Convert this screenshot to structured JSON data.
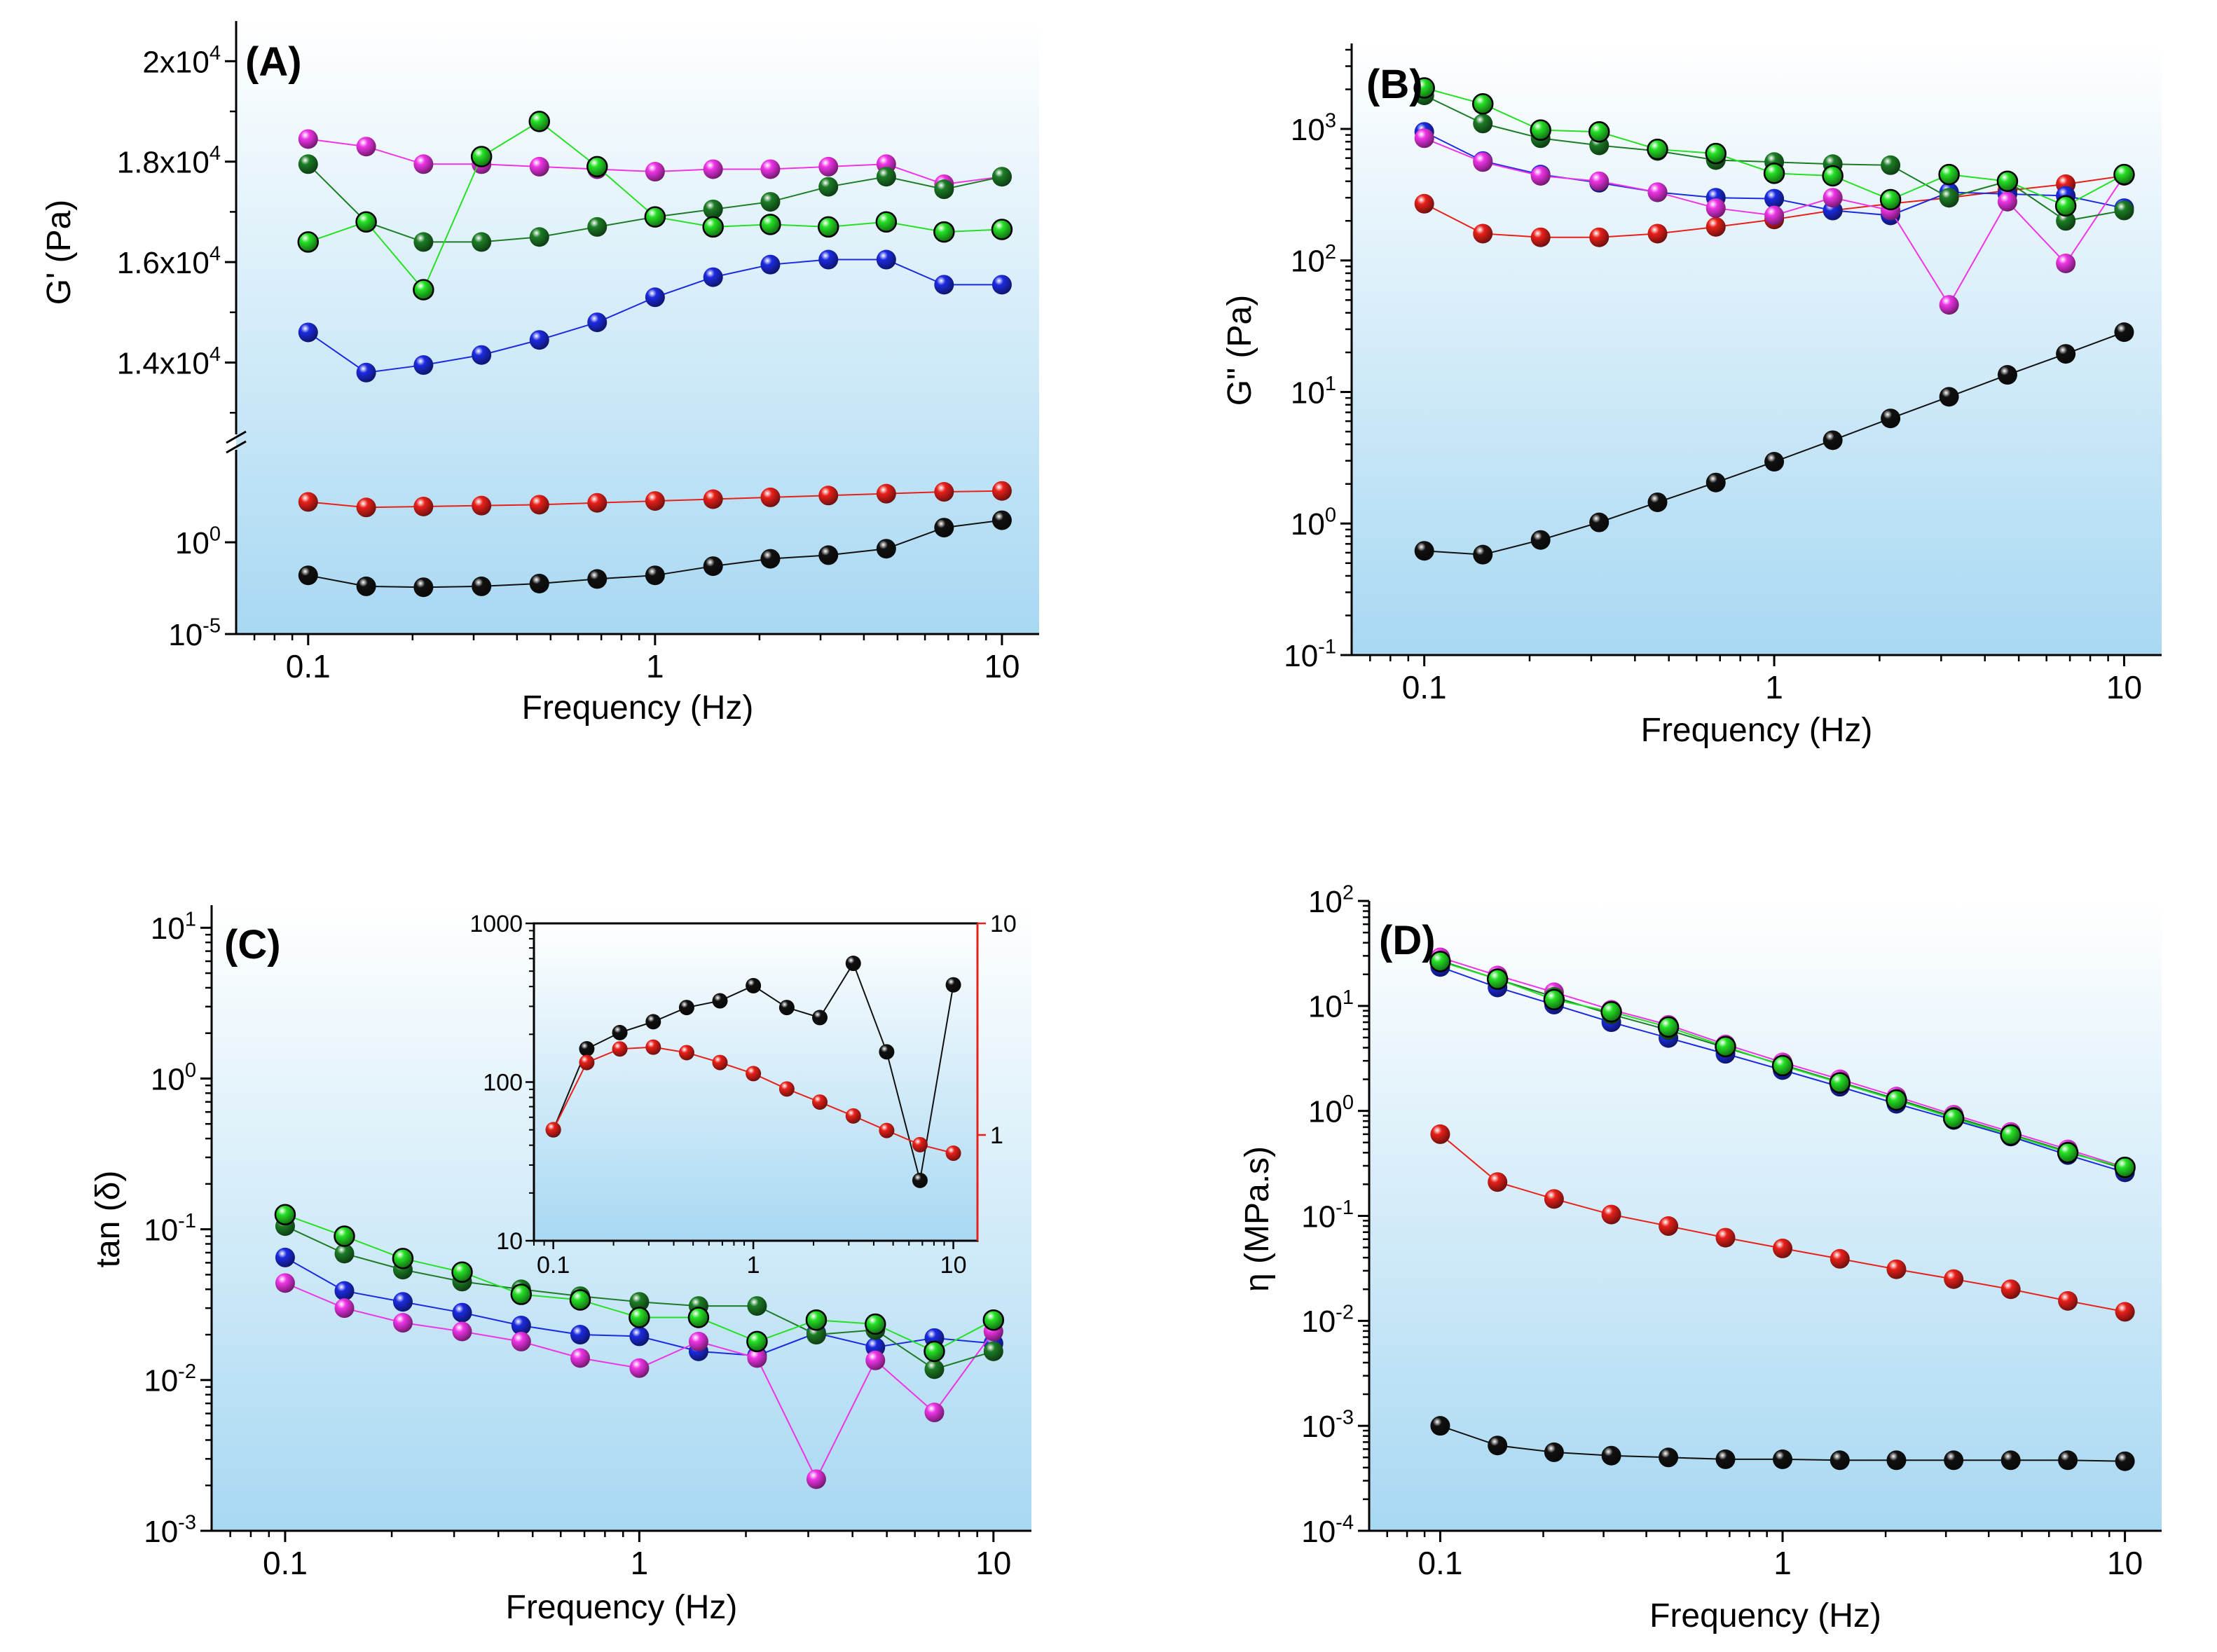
{
  "colors": {
    "black": "#111111",
    "red": "#e8201a",
    "blue": "#1c2be0",
    "magenta": "#ee34e6",
    "dgreen": "#1c7d26",
    "lgreen": "#25e025",
    "bg_top": "#ffffff",
    "bg_bottom": "#a8d8f2"
  },
  "chart_data": [
    {
      "id": "A",
      "title": "(A)",
      "type": "line",
      "xlabel": "Frequency (Hz)",
      "ylabel": "G' (Pa)",
      "xscale": "log",
      "xlim": [
        0.062,
        12.8
      ],
      "xticks": [
        0.1,
        1,
        10
      ],
      "xtick_labels": [
        "0.1",
        "1",
        "10"
      ],
      "yaxis_break": true,
      "ylim_upper": [
        12500,
        20800
      ],
      "yticks_upper": [
        {
          "v": 14000,
          "m": "1.4x10",
          "e": "4"
        },
        {
          "v": 16000,
          "m": "1.6x10",
          "e": "4"
        },
        {
          "v": 18000,
          "m": "1.8x10",
          "e": "4"
        },
        {
          "v": 20000,
          "m": "2x10",
          "e": "4"
        }
      ],
      "ylim_lower_log": [
        -5,
        5.5
      ],
      "yticks_lower": [
        {
          "v": 0,
          "m": "10",
          "e": "0"
        },
        {
          "v": -5,
          "m": "10",
          "e": "-5"
        }
      ],
      "x": [
        0.1,
        0.147,
        0.215,
        0.316,
        0.464,
        0.681,
        1.0,
        1.47,
        2.15,
        3.16,
        4.64,
        6.81,
        10.0
      ],
      "series": [
        {
          "name": "black",
          "segment": "lower",
          "values_log10": [
            -1.8,
            -2.4,
            -2.45,
            -2.4,
            -2.25,
            -2.0,
            -1.8,
            -1.3,
            -0.9,
            -0.7,
            -0.35,
            0.8,
            1.2
          ]
        },
        {
          "name": "red",
          "segment": "lower",
          "values_log10": [
            2.2,
            1.9,
            1.95,
            2.0,
            2.05,
            2.15,
            2.25,
            2.35,
            2.45,
            2.55,
            2.65,
            2.75,
            2.8
          ]
        },
        {
          "name": "blue",
          "segment": "upper",
          "values": [
            14600,
            13800,
            13950,
            14150,
            14450,
            14800,
            15300,
            15700,
            15950,
            16050,
            16050,
            15550,
            15550
          ]
        },
        {
          "name": "magenta",
          "segment": "upper",
          "values": [
            18450,
            18300,
            17950,
            17950,
            17900,
            17850,
            17800,
            17850,
            17850,
            17900,
            17950,
            17550,
            17700
          ]
        },
        {
          "name": "dgreen",
          "segment": "upper",
          "values": [
            17950,
            16800,
            16400,
            16400,
            16500,
            16700,
            16900,
            17050,
            17200,
            17500,
            17700,
            17450,
            17700
          ]
        },
        {
          "name": "lgreen",
          "segment": "upper",
          "values": [
            16400,
            16800,
            15450,
            18100,
            18800,
            17900,
            16900,
            16700,
            16750,
            16700,
            16800,
            16600,
            16650
          ]
        }
      ]
    },
    {
      "id": "B",
      "title": "(B)",
      "type": "line",
      "xlabel": "Frequency (Hz)",
      "ylabel": "G\" (Pa)",
      "xscale": "log",
      "xlim": [
        0.062,
        12.8
      ],
      "yscale": "log",
      "ylim_log": [
        -1,
        3.65
      ],
      "xticks": [
        0.1,
        1,
        10
      ],
      "xtick_labels": [
        "0.1",
        "1",
        "10"
      ],
      "yticks": [
        {
          "v": -1,
          "m": "10",
          "e": "-1"
        },
        {
          "v": 0,
          "m": "10",
          "e": "0"
        },
        {
          "v": 1,
          "m": "10",
          "e": "1"
        },
        {
          "v": 2,
          "m": "10",
          "e": "2"
        },
        {
          "v": 3,
          "m": "10",
          "e": "3"
        }
      ],
      "x": [
        0.1,
        0.147,
        0.215,
        0.316,
        0.464,
        0.681,
        1.0,
        1.47,
        2.15,
        3.16,
        4.64,
        6.81,
        10.0
      ],
      "series": [
        {
          "name": "black",
          "values": [
            0.62,
            0.58,
            0.75,
            1.02,
            1.45,
            2.05,
            2.95,
            4.3,
            6.3,
            9.2,
            13.5,
            19.5,
            28.5
          ]
        },
        {
          "name": "red",
          "values": [
            270,
            160,
            150,
            150,
            160,
            180,
            205,
            240,
            270,
            300,
            340,
            380,
            440
          ]
        },
        {
          "name": "blue",
          "values": [
            950,
            570,
            450,
            390,
            330,
            300,
            295,
            240,
            220,
            330,
            320,
            310,
            250
          ]
        },
        {
          "name": "magenta",
          "values": [
            850,
            560,
            440,
            400,
            330,
            250,
            220,
            300,
            240,
            46,
            280,
            95,
            440
          ]
        },
        {
          "name": "dgreen",
          "values": [
            1800,
            1100,
            850,
            750,
            680,
            580,
            560,
            540,
            530,
            300,
            400,
            200,
            240
          ]
        },
        {
          "name": "lgreen",
          "values": [
            2050,
            1550,
            980,
            950,
            700,
            650,
            460,
            440,
            290,
            450,
            400,
            260,
            450
          ]
        }
      ]
    },
    {
      "id": "C",
      "title": "(C)",
      "type": "line",
      "xlabel": "Frequency (Hz)",
      "ylabel": "tan (δ)",
      "xscale": "log",
      "xlim": [
        0.062,
        12.8
      ],
      "yscale": "log",
      "ylim_log": [
        -3,
        1.15
      ],
      "xticks": [
        0.1,
        1,
        10
      ],
      "xtick_labels": [
        "0.1",
        "1",
        "10"
      ],
      "yticks": [
        {
          "v": -3,
          "m": "10",
          "e": "-3"
        },
        {
          "v": -2,
          "m": "10",
          "e": "-2"
        },
        {
          "v": -1,
          "m": "10",
          "e": "-1"
        },
        {
          "v": 0,
          "m": "10",
          "e": "0"
        },
        {
          "v": 1,
          "m": "10",
          "e": "1"
        }
      ],
      "x": [
        0.1,
        0.147,
        0.215,
        0.316,
        0.464,
        0.681,
        1.0,
        1.47,
        2.15,
        3.16,
        4.64,
        6.81,
        10.0
      ],
      "series": [
        {
          "name": "blue",
          "values": [
            0.065,
            0.039,
            0.033,
            0.028,
            0.023,
            0.02,
            0.0195,
            0.0155,
            0.0145,
            0.0205,
            0.0165,
            0.019,
            0.0175
          ]
        },
        {
          "name": "magenta",
          "values": [
            0.044,
            0.03,
            0.024,
            0.021,
            0.018,
            0.014,
            0.012,
            0.018,
            0.014,
            0.0022,
            0.0135,
            0.0061,
            0.021
          ]
        },
        {
          "name": "dgreen",
          "values": [
            0.105,
            0.069,
            0.054,
            0.045,
            0.04,
            0.036,
            0.033,
            0.031,
            0.031,
            0.02,
            0.0215,
            0.0118,
            0.0155
          ]
        },
        {
          "name": "lgreen",
          "values": [
            0.125,
            0.09,
            0.064,
            0.052,
            0.037,
            0.034,
            0.026,
            0.026,
            0.018,
            0.025,
            0.0235,
            0.0155,
            0.025
          ]
        }
      ],
      "inset": {
        "xscale": "log",
        "xlim": [
          0.08,
          13.2
        ],
        "xticks": [
          0.1,
          1,
          10
        ],
        "xtick_labels": [
          "0.1",
          "1",
          "10"
        ],
        "left_ylim_log": [
          1,
          3
        ],
        "left_ticks": [
          {
            "v": 1,
            "label": "10"
          },
          {
            "v": 2,
            "label": "100"
          },
          {
            "v": 3,
            "label": "1000"
          }
        ],
        "right_ylim_log": [
          -0.5,
          1
        ],
        "right_ticks": [
          {
            "v": 0,
            "label": "1"
          },
          {
            "v": 1,
            "label": "10"
          }
        ],
        "x": [
          0.1,
          0.147,
          0.215,
          0.316,
          0.464,
          0.681,
          1.0,
          1.47,
          2.15,
          3.16,
          4.64,
          6.81,
          10.0
        ],
        "series": [
          {
            "name": "black",
            "axis": "left",
            "values": [
              50,
              162,
              205,
              240,
              295,
              325,
              405,
              295,
              255,
              560,
              155,
              24,
              410
            ]
          },
          {
            "name": "red",
            "axis": "right",
            "values": [
              1.06,
              2.2,
              2.55,
              2.6,
              2.45,
              2.2,
              1.95,
              1.65,
              1.43,
              1.23,
              1.05,
              0.9,
              0.82
            ]
          }
        ]
      }
    },
    {
      "id": "D",
      "title": "(D)",
      "type": "line",
      "xlabel": "Frequency (Hz)",
      "ylabel": "η (MPa.s)",
      "xscale": "log",
      "xlim": [
        0.062,
        12.8
      ],
      "yscale": "log",
      "ylim_log": [
        -4,
        2
      ],
      "xticks": [
        0.1,
        1,
        10
      ],
      "xtick_labels": [
        "0.1",
        "1",
        "10"
      ],
      "yticks": [
        {
          "v": -4,
          "m": "10",
          "e": "-4"
        },
        {
          "v": -3,
          "m": "10",
          "e": "-3"
        },
        {
          "v": -2,
          "m": "10",
          "e": "-2"
        },
        {
          "v": -1,
          "m": "10",
          "e": "-1"
        },
        {
          "v": 0,
          "m": "10",
          "e": "0"
        },
        {
          "v": 1,
          "m": "10",
          "e": "1"
        },
        {
          "v": 2,
          "m": "10",
          "e": "2"
        }
      ],
      "x": [
        0.1,
        0.147,
        0.215,
        0.316,
        0.464,
        0.681,
        1.0,
        1.47,
        2.15,
        3.16,
        4.64,
        6.81,
        10.0
      ],
      "series": [
        {
          "name": "black",
          "values": [
            0.001,
            0.00065,
            0.00056,
            0.00052,
            0.0005,
            0.00048,
            0.00048,
            0.00047,
            0.00047,
            0.00047,
            0.00047,
            0.00047,
            0.00046
          ]
        },
        {
          "name": "red",
          "values": [
            0.6,
            0.21,
            0.145,
            0.103,
            0.08,
            0.062,
            0.049,
            0.039,
            0.031,
            0.025,
            0.02,
            0.0155,
            0.0122
          ]
        },
        {
          "name": "blue",
          "values": [
            23.5,
            15.0,
            10.3,
            7.0,
            4.95,
            3.5,
            2.45,
            1.7,
            1.17,
            0.82,
            0.57,
            0.38,
            0.26
          ]
        },
        {
          "name": "magenta",
          "values": [
            29.0,
            19.5,
            13.5,
            9.2,
            6.6,
            4.3,
            2.9,
            2.0,
            1.37,
            0.92,
            0.63,
            0.43,
            0.29
          ]
        },
        {
          "name": "dgreen",
          "values": [
            27.0,
            18.0,
            12.2,
            8.3,
            5.9,
            4.0,
            2.75,
            1.88,
            1.3,
            0.88,
            0.6,
            0.41,
            0.28
          ]
        },
        {
          "name": "lgreen",
          "values": [
            26.5,
            18.0,
            11.5,
            8.8,
            6.3,
            4.1,
            2.7,
            1.85,
            1.27,
            0.85,
            0.59,
            0.4,
            0.29
          ]
        }
      ]
    }
  ]
}
